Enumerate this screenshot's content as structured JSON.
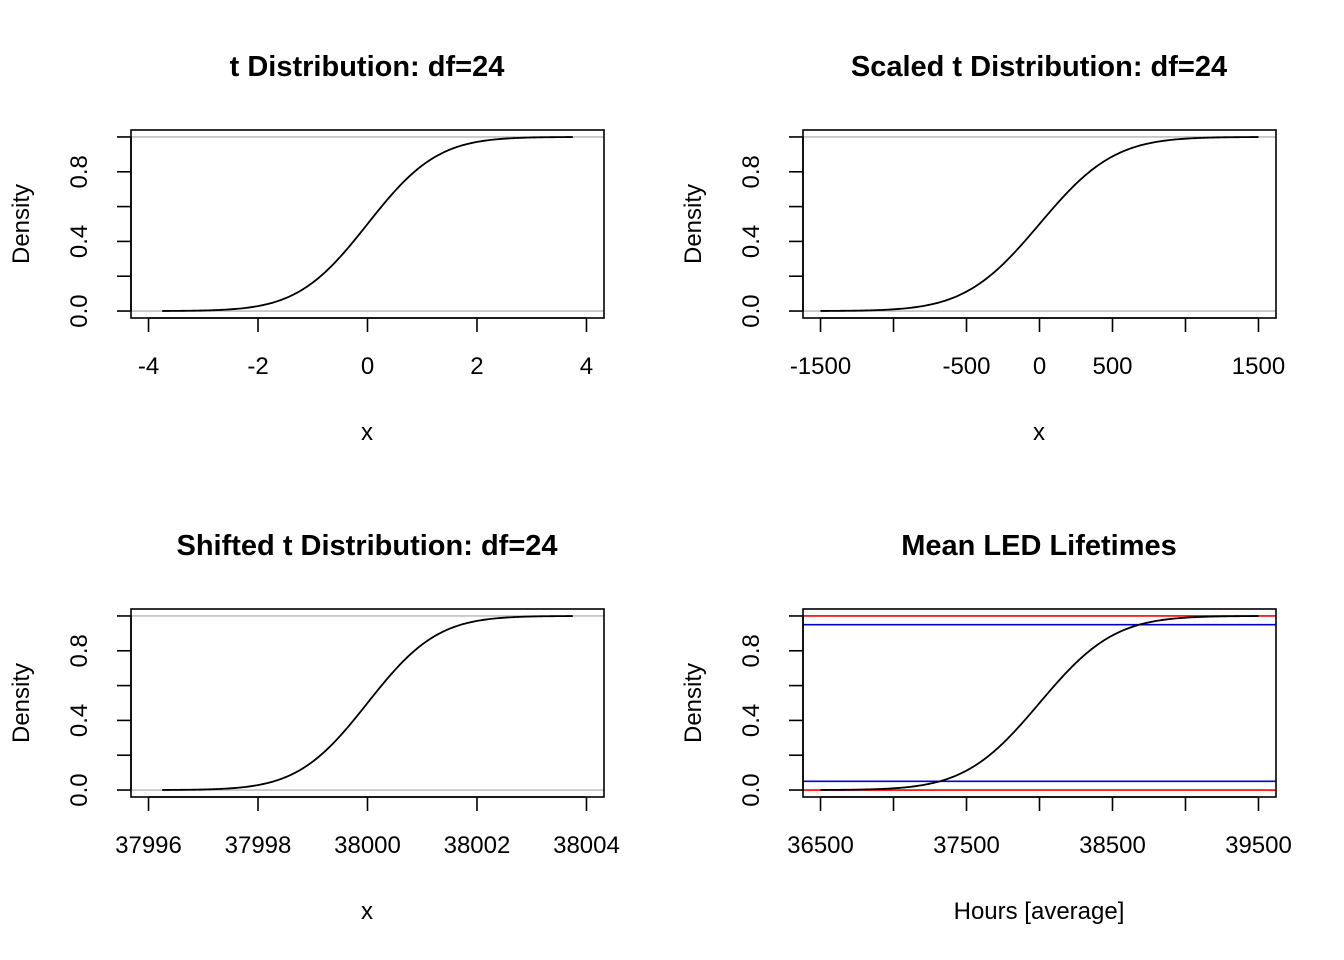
{
  "chart_data": [
    {
      "type": "line",
      "title": "t Distribution:  df=24",
      "xlabel": "x",
      "ylabel": "Density",
      "xlim": [
        -4,
        4
      ],
      "ylim": [
        0,
        1
      ],
      "x_ticks": [
        -4,
        -2,
        0,
        2,
        4
      ],
      "x_tick_labels": [
        "-4",
        "-2",
        "0",
        "2",
        "4"
      ],
      "y_ticks": [
        0,
        0.2,
        0.4,
        0.6,
        0.8,
        1.0
      ],
      "y_tick_labels": [
        "0.0",
        "",
        "0.4",
        "",
        "0.8",
        ""
      ],
      "curve": {
        "kind": "t-cdf",
        "df": 24,
        "location": 0,
        "scale": 1,
        "from": -3.75,
        "to": 3.75
      },
      "hlines": [
        {
          "y": 0,
          "color": "#c0c0c0"
        },
        {
          "y": 1,
          "color": "#c0c0c0"
        }
      ]
    },
    {
      "type": "line",
      "title": "Scaled t Distribution:  df=24",
      "xlabel": "x",
      "ylabel": "Density",
      "xlim": [
        -1500,
        1500
      ],
      "ylim": [
        0,
        1
      ],
      "x_ticks": [
        -1500,
        -1000,
        -500,
        0,
        500,
        1000,
        1500
      ],
      "x_tick_labels": [
        "-1500",
        "",
        "-500",
        "0",
        "500",
        "",
        "1500"
      ],
      "y_ticks": [
        0,
        0.2,
        0.4,
        0.6,
        0.8,
        1.0
      ],
      "y_tick_labels": [
        "0.0",
        "",
        "0.4",
        "",
        "0.8",
        ""
      ],
      "curve": {
        "kind": "t-cdf",
        "df": 24,
        "location": 0,
        "scale": 400,
        "from": -1500,
        "to": 1500
      },
      "hlines": [
        {
          "y": 0,
          "color": "#c0c0c0"
        },
        {
          "y": 1,
          "color": "#c0c0c0"
        }
      ]
    },
    {
      "type": "line",
      "title": "Shifted t Distribution:  df=24",
      "xlabel": "x",
      "ylabel": "Density",
      "xlim": [
        37996,
        38004
      ],
      "ylim": [
        0,
        1
      ],
      "x_ticks": [
        37996,
        37998,
        38000,
        38002,
        38004
      ],
      "x_tick_labels": [
        "37996",
        "37998",
        "38000",
        "38002",
        "38004"
      ],
      "y_ticks": [
        0,
        0.2,
        0.4,
        0.6,
        0.8,
        1.0
      ],
      "y_tick_labels": [
        "0.0",
        "",
        "0.4",
        "",
        "0.8",
        ""
      ],
      "curve": {
        "kind": "t-cdf",
        "df": 24,
        "location": 38000,
        "scale": 1,
        "from": 37996.25,
        "to": 38003.75
      },
      "hlines": [
        {
          "y": 0,
          "color": "#c0c0c0"
        },
        {
          "y": 1,
          "color": "#c0c0c0"
        }
      ]
    },
    {
      "type": "line",
      "title": "Mean LED Lifetimes",
      "xlabel": "Hours [average]",
      "ylabel": "Density",
      "xlim": [
        36500,
        39500
      ],
      "ylim": [
        0,
        1
      ],
      "x_ticks": [
        36500,
        37000,
        37500,
        38000,
        38500,
        39000,
        39500
      ],
      "x_tick_labels": [
        "36500",
        "",
        "37500",
        "",
        "38500",
        "",
        "39500"
      ],
      "y_ticks": [
        0,
        0.2,
        0.4,
        0.6,
        0.8,
        1.0
      ],
      "y_tick_labels": [
        "0.0",
        "",
        "0.4",
        "",
        "0.8",
        ""
      ],
      "curve": {
        "kind": "t-cdf",
        "df": 24,
        "location": 38000,
        "scale": 400,
        "from": 36500,
        "to": 39500
      },
      "hlines": [
        {
          "y": 0,
          "color": "#ff0000"
        },
        {
          "y": 1,
          "color": "#ff0000"
        },
        {
          "y": 0.05,
          "color": "#0000cc"
        },
        {
          "y": 0.95,
          "color": "#0000cc"
        }
      ]
    }
  ]
}
